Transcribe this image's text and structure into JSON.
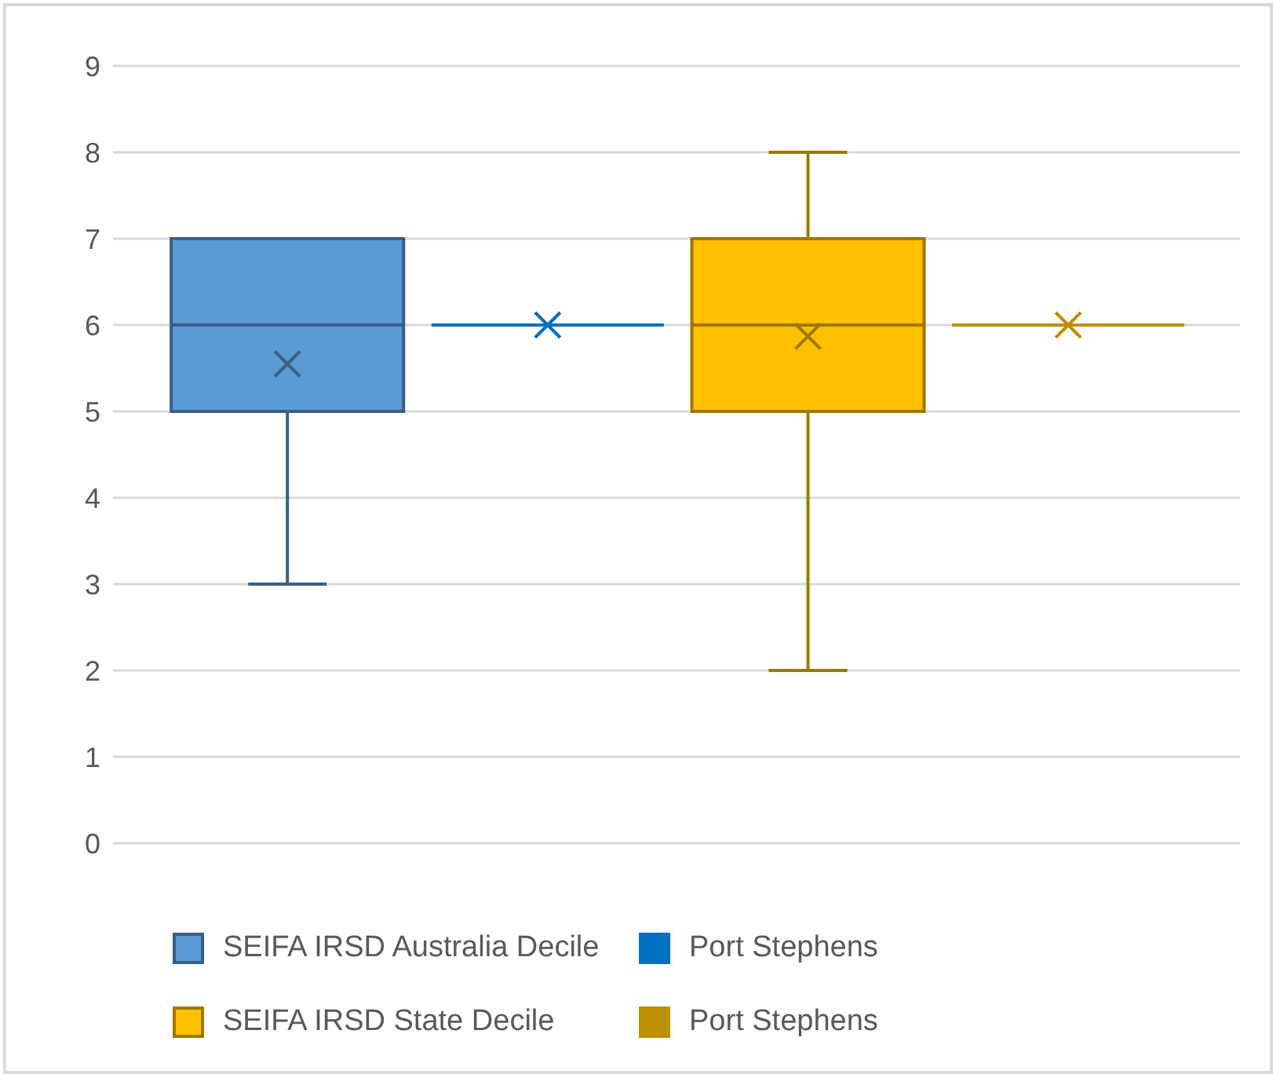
{
  "chart_data": {
    "type": "box",
    "categories": [
      null
    ],
    "ylim": [
      0,
      9
    ],
    "yticks": [
      0,
      1,
      2,
      3,
      4,
      5,
      6,
      7,
      8,
      9
    ],
    "grid": "y",
    "legend": "bottom",
    "series": [
      {
        "name": "SEIFA IRSD Australia Decile",
        "color": "#5b9bd5",
        "boxes": [
          {
            "low": 3,
            "q1": 5,
            "median": 6,
            "q3": 7,
            "high": 7,
            "mean": 5.55
          }
        ]
      },
      {
        "name": "Port Stephens",
        "color": "#0070c0",
        "boxes": [
          {
            "low": 6,
            "q1": 6,
            "median": 6,
            "q3": 6,
            "high": 6,
            "mean": 6
          }
        ]
      },
      {
        "name": "SEIFA IRSD State Decile",
        "color": "#ffc000",
        "boxes": [
          {
            "low": 2,
            "q1": 5,
            "median": 6,
            "q3": 7,
            "high": 8,
            "mean": 5.87
          }
        ]
      },
      {
        "name": "Port Stephens",
        "color": "#bf9000",
        "boxes": [
          {
            "low": 6,
            "q1": 6,
            "median": 6,
            "q3": 6,
            "high": 6,
            "mean": 6
          }
        ]
      }
    ]
  }
}
